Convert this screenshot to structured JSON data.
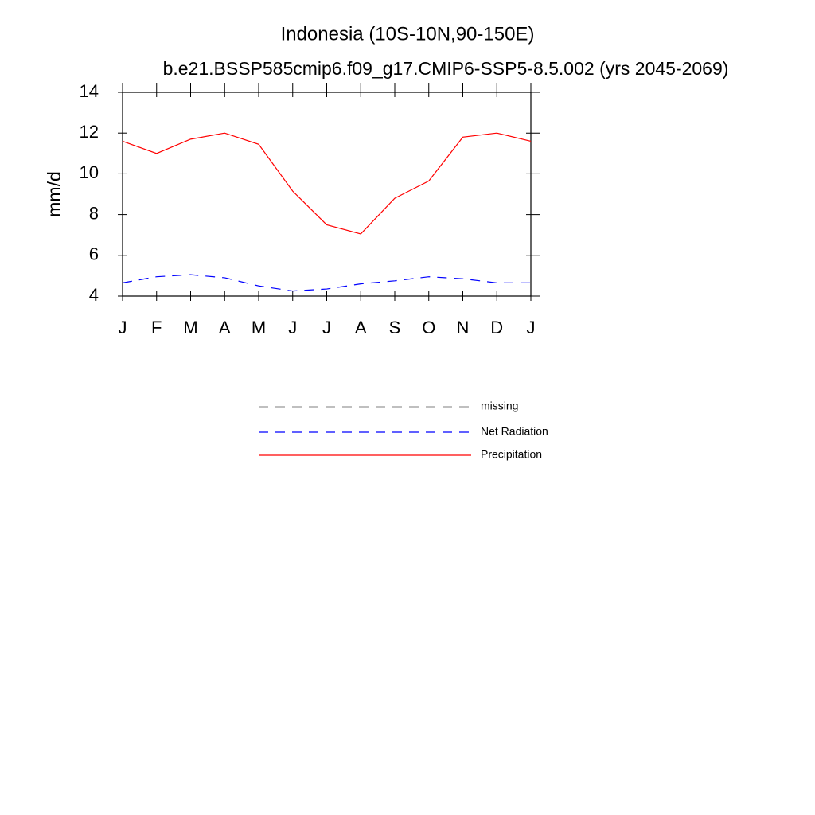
{
  "chart_data": {
    "type": "line",
    "title": "Indonesia (10S-10N,90-150E)",
    "subtitle": "b.e21.BSSP585cmip6.f09_g17.CMIP6-SSP5-8.5.002 (yrs 2045-2069)",
    "y_label": "mm/d",
    "categories": [
      "J",
      "F",
      "M",
      "A",
      "M",
      "J",
      "J",
      "A",
      "S",
      "O",
      "N",
      "D",
      "J"
    ],
    "series": [
      {
        "name": "missing",
        "color": "#999999",
        "dash": "dashed",
        "values": [
          null,
          null,
          null,
          null,
          null,
          null,
          null,
          null,
          null,
          null,
          null,
          null,
          null
        ]
      },
      {
        "name": "Net Radiation",
        "color": "#0000ff",
        "dash": "dashed",
        "values": [
          4.65,
          4.95,
          5.05,
          4.9,
          4.5,
          4.25,
          4.35,
          4.6,
          4.75,
          4.95,
          4.85,
          4.65,
          4.65
        ]
      },
      {
        "name": "Precipitation",
        "color": "#ff0000",
        "dash": "solid",
        "values": [
          11.6,
          11.0,
          11.7,
          12.0,
          11.45,
          9.15,
          7.5,
          7.05,
          8.8,
          9.65,
          11.8,
          12.0,
          11.6
        ]
      }
    ],
    "ylim": [
      4,
      14
    ],
    "yticks": [
      4,
      6,
      8,
      10,
      12,
      14
    ],
    "grid": false,
    "legend": "bottom"
  }
}
